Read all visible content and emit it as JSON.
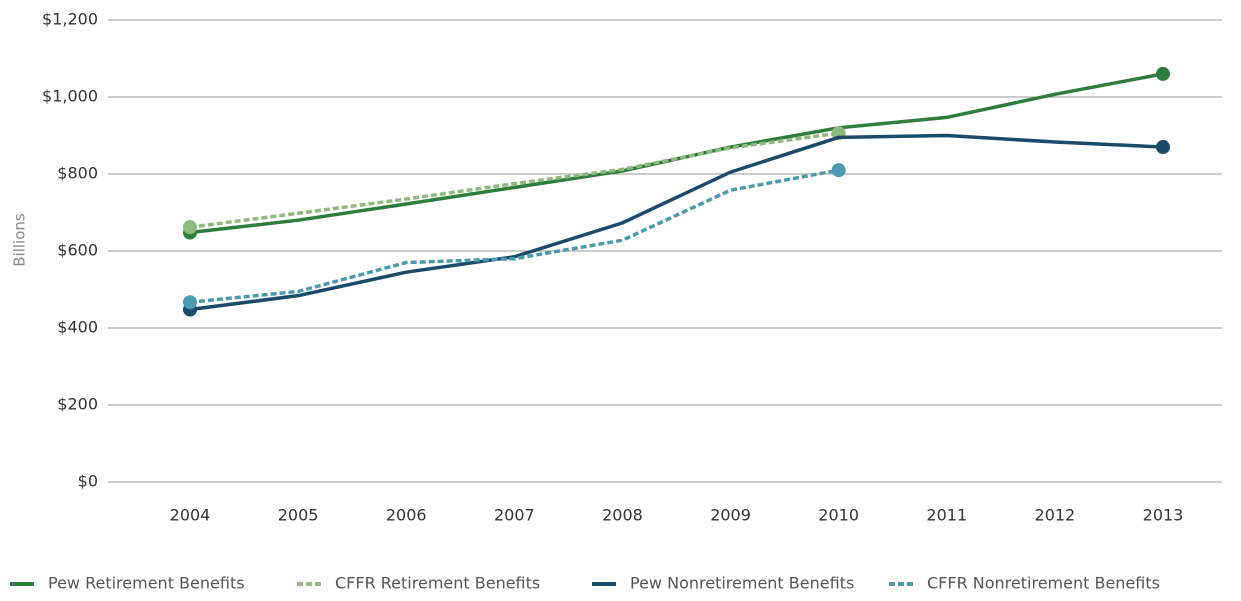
{
  "chart_data": {
    "type": "line",
    "y_label": "Billions",
    "categories": [
      "2004",
      "2005",
      "2006",
      "2007",
      "2008",
      "2009",
      "2010",
      "2011",
      "2012",
      "2013"
    ],
    "series": [
      {
        "name": "Pew Retirement Benefits",
        "color": "#2f7d3a",
        "line_style": "solid",
        "values": [
          648,
          680,
          722,
          765,
          808,
          870,
          920,
          947,
          1007,
          1060
        ]
      },
      {
        "name": "CFFR Retirement Benefits",
        "color": "#8fba7d",
        "line_style": "dashed",
        "values": [
          662,
          698,
          735,
          775,
          812,
          868,
          906,
          null,
          null,
          null
        ]
      },
      {
        "name": "Pew Nonretirement Benefits",
        "color": "#1b4b6b",
        "line_style": "solid",
        "values": [
          448,
          484,
          545,
          585,
          673,
          805,
          895,
          900,
          883,
          870
        ]
      },
      {
        "name": "CFFR Nonretirement Benefits",
        "color": "#4a9ab0",
        "line_style": "dashed",
        "values": [
          467,
          495,
          570,
          580,
          628,
          758,
          810,
          null,
          null,
          null
        ]
      }
    ],
    "ylim": [
      0,
      1200
    ],
    "yticks": [
      {
        "value": 0,
        "label": "$0"
      },
      {
        "value": 200,
        "label": "$200"
      },
      {
        "value": 400,
        "label": "$400"
      },
      {
        "value": 600,
        "label": "$600"
      },
      {
        "value": 800,
        "label": "$800"
      },
      {
        "value": 1000,
        "label": "$1,000"
      },
      {
        "value": 1200,
        "label": "$1,200"
      }
    ],
    "grid": true,
    "legend": "bottom"
  }
}
